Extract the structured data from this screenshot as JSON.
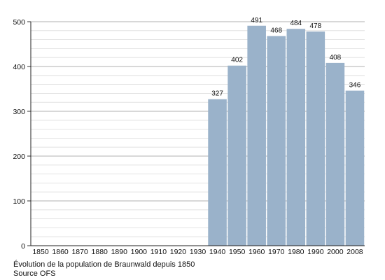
{
  "chart_data": {
    "type": "bar",
    "categories": [
      "1850",
      "1860",
      "1870",
      "1880",
      "1890",
      "1900",
      "1910",
      "1920",
      "1930",
      "1940",
      "1950",
      "1960",
      "1970",
      "1980",
      "1990",
      "2000",
      "2008"
    ],
    "values": [
      null,
      null,
      null,
      null,
      null,
      null,
      null,
      null,
      null,
      327,
      402,
      491,
      468,
      484,
      478,
      408,
      346
    ],
    "data_labels": [
      "",
      "",
      "",
      "",
      "",
      "",
      "",
      "",
      "",
      "327",
      "402",
      "491",
      "468",
      "484",
      "478",
      "408",
      "346"
    ],
    "ylim": [
      0,
      500
    ],
    "yticks": [
      0,
      100,
      200,
      300,
      400,
      500
    ],
    "grid": true,
    "bar_color": "#9ab2ca",
    "grid_color": "#b0b0b0"
  },
  "caption": {
    "line1": "Évolution de la population de Braunwald depuis 1850",
    "line2": "Source OFS"
  }
}
